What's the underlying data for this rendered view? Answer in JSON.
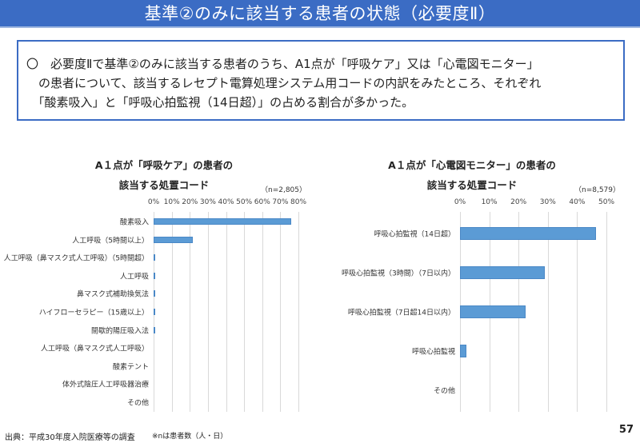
{
  "header": {
    "title": "基準②のみに該当する患者の状態（必要度Ⅱ）"
  },
  "summary": {
    "lines": [
      "〇　必要度Ⅱで基準②のみに該当する患者のうち、A1点が「呼吸ケア」又は「心電図モニター」",
      "　の患者について、該当するレセプト電算処理システム用コードの内訳をみたところ、それぞれ",
      "　「酸素吸入」と「呼吸心拍監視（14日超）」の占める割合が多かった。"
    ]
  },
  "chart_data": [
    {
      "type": "bar",
      "orientation": "horizontal",
      "title": [
        "A１点が「呼吸ケア」の患者の",
        "該当する処置コード"
      ],
      "n_label": "（n=2,805）",
      "xlim": [
        0,
        80
      ],
      "ticks": [
        "0%",
        "10%",
        "20%",
        "30%",
        "40%",
        "50%",
        "60%",
        "70%",
        "80%"
      ],
      "categories": [
        "酸素吸入",
        "人工呼吸（5時間以上）",
        "人工呼吸（鼻マスク式人工呼吸）（5時間超）",
        "人工呼吸",
        "鼻マスク式補助換気法",
        "ハイフローセラピー（15歳以上）",
        "間歇的陽圧吸入法",
        "人工呼吸（鼻マスク式人工呼吸）",
        "酸素テント",
        "体外式陰圧人工呼吸器治療",
        "その他"
      ],
      "values": [
        76,
        21.5,
        0.8,
        0.7,
        0.4,
        0.4,
        0.2,
        0,
        0,
        0,
        0
      ]
    },
    {
      "type": "bar",
      "orientation": "horizontal",
      "title": [
        "A１点が「心電図モニター」の患者の",
        "該当する処置コード"
      ],
      "n_label": "（n=8,579）",
      "xlim": [
        0,
        50
      ],
      "ticks": [
        "0%",
        "10%",
        "20%",
        "30%",
        "40%",
        "50%"
      ],
      "categories": [
        "呼吸心拍監視（14日超）",
        "呼吸心拍監視（3時間）（7日以内）",
        "呼吸心拍監視（7日超14日以内）",
        "呼吸心拍監視",
        "その他"
      ],
      "values": [
        46.4,
        29,
        22.4,
        2.2,
        0
      ]
    }
  ],
  "footer": {
    "source": "出典：平成30年度入院医療等の調査",
    "note": "※nは患者数（人・日）",
    "page": "57"
  }
}
